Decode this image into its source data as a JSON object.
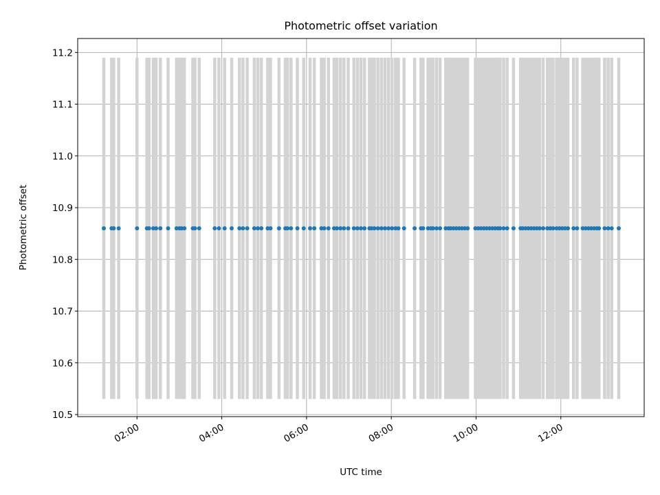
{
  "chart_data": {
    "type": "scatter",
    "title": "Photometric offset variation",
    "xlabel": "UTC time",
    "ylabel": "Photometric offset",
    "x_unit": "minutes since 00:00 UTC",
    "xlim": [
      36,
      838
    ],
    "ylim": [
      10.496,
      11.227
    ],
    "xticks": [
      120,
      240,
      360,
      480,
      600,
      720
    ],
    "xtick_labels": [
      "02:00",
      "04:00",
      "06:00",
      "08:00",
      "10:00",
      "12:00"
    ],
    "yticks": [
      10.5,
      10.6,
      10.7,
      10.8,
      10.9,
      11.0,
      11.1,
      11.2
    ],
    "ytick_labels": [
      "10.5",
      "10.6",
      "10.7",
      "10.8",
      "10.9",
      "11.0",
      "11.1",
      "11.2"
    ],
    "grid": true,
    "y_value": 10.86,
    "y_error": 0.33,
    "x": [
      73,
      84,
      87,
      94,
      120,
      134,
      137,
      143,
      147,
      153,
      164,
      176,
      180,
      183,
      187,
      199,
      202,
      208,
      230,
      236,
      244,
      254,
      265,
      270,
      276,
      286,
      291,
      296,
      305,
      309,
      321,
      330,
      333,
      338,
      347,
      356,
      365,
      371,
      381,
      385,
      391,
      399,
      403,
      408,
      413,
      419,
      427,
      432,
      437,
      442,
      449,
      452,
      456,
      461,
      466,
      471,
      476,
      481,
      486,
      490,
      498,
      513,
      522,
      525,
      532,
      536,
      539,
      544,
      549,
      557,
      561,
      564,
      568,
      572,
      576,
      580,
      584,
      588,
      599,
      603,
      607,
      611,
      615,
      619,
      623,
      627,
      631,
      634,
      639,
      644,
      653,
      663,
      666,
      670,
      674,
      678,
      682,
      686,
      690,
      695,
      701,
      705,
      709,
      714,
      718,
      722,
      726,
      730,
      738,
      743,
      751,
      755,
      759,
      763,
      767,
      771,
      774,
      782,
      787,
      792,
      802
    ],
    "point_color": "#1f77b4",
    "errorbar_color": "#d3d3d3"
  }
}
